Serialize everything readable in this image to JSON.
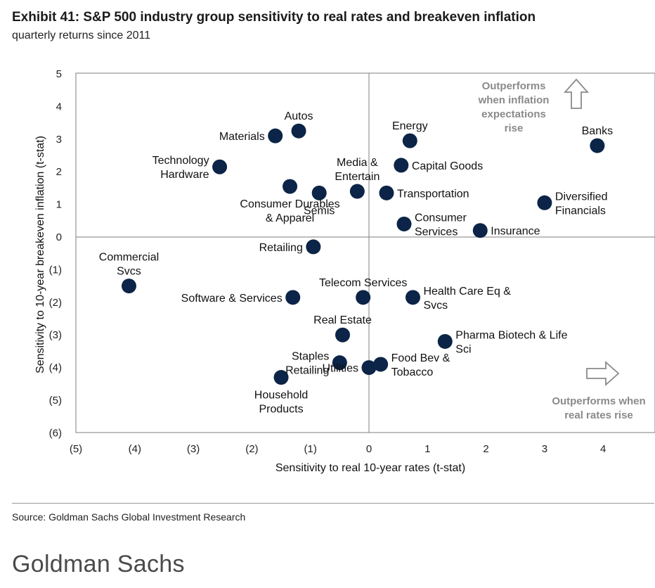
{
  "header": {
    "title": "Exhibit 41: S&P 500 industry group sensitivity to real rates and breakeven inflation",
    "subtitle": "quarterly returns since 2011"
  },
  "footer": {
    "source": "Source: Goldman Sachs Global Investment Research",
    "brand": "Goldman Sachs"
  },
  "colors": {
    "point": "#0b2447",
    "axis": "#7f7f7f",
    "annotation": "#8a8a8a"
  },
  "chart_data": {
    "type": "scatter",
    "title": "S&P 500 industry group sensitivity to real rates and breakeven inflation",
    "xlabel": "Sensitivity to real 10-year rates (t-stat)",
    "ylabel": "Sensitivity to 10-year breakeven inflation (t-stat)",
    "xlim": [
      -5,
      5
    ],
    "ylim": [
      -6,
      5
    ],
    "x_ticks": [
      -5,
      -4,
      -3,
      -2,
      -1,
      0,
      1,
      2,
      3,
      4
    ],
    "x_tick_labels": [
      "(5)",
      "(4)",
      "(3)",
      "(2)",
      "(1)",
      "0",
      "1",
      "2",
      "3",
      "4"
    ],
    "y_ticks": [
      5,
      4,
      3,
      2,
      1,
      0,
      -1,
      -2,
      -3,
      -4,
      -5,
      -6
    ],
    "y_tick_labels": [
      "5",
      "4",
      "3",
      "2",
      "1",
      "0",
      "(1)",
      "(2)",
      "(3)",
      "(4)",
      "(5)",
      "(6)"
    ],
    "grid": false,
    "points": [
      {
        "label": [
          "Autos"
        ],
        "x": -1.2,
        "y": 3.25,
        "pos": "above"
      },
      {
        "label": [
          "Materials"
        ],
        "x": -1.6,
        "y": 3.1,
        "pos": "left"
      },
      {
        "label": [
          "Technology",
          "Hardware"
        ],
        "x": -2.55,
        "y": 2.15,
        "pos": "left"
      },
      {
        "label": [
          "Media &",
          "Entertain"
        ],
        "x": -0.2,
        "y": 1.4,
        "pos": "above"
      },
      {
        "label": [
          "Consumer Durables",
          "& Apparel"
        ],
        "x": -1.35,
        "y": 1.55,
        "pos": "below"
      },
      {
        "label": [
          "Semis"
        ],
        "x": -0.85,
        "y": 1.35,
        "pos": "below"
      },
      {
        "label": [
          "Energy"
        ],
        "x": 0.7,
        "y": 2.95,
        "pos": "above"
      },
      {
        "label": [
          "Capital Goods"
        ],
        "x": 0.55,
        "y": 2.2,
        "pos": "right"
      },
      {
        "label": [
          "Transportation"
        ],
        "x": 0.3,
        "y": 1.35,
        "pos": "right"
      },
      {
        "label": [
          "Consumer",
          "Services"
        ],
        "x": 0.6,
        "y": 0.4,
        "pos": "right"
      },
      {
        "label": [
          "Insurance"
        ],
        "x": 1.9,
        "y": 0.2,
        "pos": "right"
      },
      {
        "label": [
          "Banks"
        ],
        "x": 3.9,
        "y": 2.8,
        "pos": "above"
      },
      {
        "label": [
          "Diversified",
          "Financials"
        ],
        "x": 3.0,
        "y": 1.05,
        "pos": "right"
      },
      {
        "label": [
          "Retailing"
        ],
        "x": -0.95,
        "y": -0.3,
        "pos": "left"
      },
      {
        "label": [
          "Commercial",
          "Svcs"
        ],
        "x": -4.1,
        "y": -1.5,
        "pos": "above"
      },
      {
        "label": [
          "Software & Services"
        ],
        "x": -1.3,
        "y": -1.85,
        "pos": "left"
      },
      {
        "label": [
          "Telecom Services"
        ],
        "x": -0.1,
        "y": -1.85,
        "pos": "above"
      },
      {
        "label": [
          "Health Care Eq &",
          "Svcs"
        ],
        "x": 0.75,
        "y": -1.85,
        "pos": "right"
      },
      {
        "label": [
          "Real Estate"
        ],
        "x": -0.45,
        "y": -3.0,
        "pos": "above"
      },
      {
        "label": [
          "Pharma Biotech & Life",
          "Sci"
        ],
        "x": 1.3,
        "y": -3.2,
        "pos": "right"
      },
      {
        "label": [
          "Staples",
          "Retailing"
        ],
        "x": -0.5,
        "y": -3.85,
        "pos": "left"
      },
      {
        "label": [
          "Utilities"
        ],
        "x": 0.0,
        "y": -4.0,
        "pos": "left"
      },
      {
        "label": [
          "Food Bev &",
          "Tobacco"
        ],
        "x": 0.2,
        "y": -3.9,
        "pos": "right"
      },
      {
        "label": [
          "Household",
          "Products"
        ],
        "x": -1.5,
        "y": -4.3,
        "pos": "below"
      }
    ],
    "annotations": [
      {
        "text": [
          "Outperforms",
          "when inflation",
          "expectations",
          "rise"
        ],
        "arrow": "up"
      },
      {
        "text": [
          "Outperforms when",
          "real rates rise"
        ],
        "arrow": "right"
      }
    ]
  }
}
